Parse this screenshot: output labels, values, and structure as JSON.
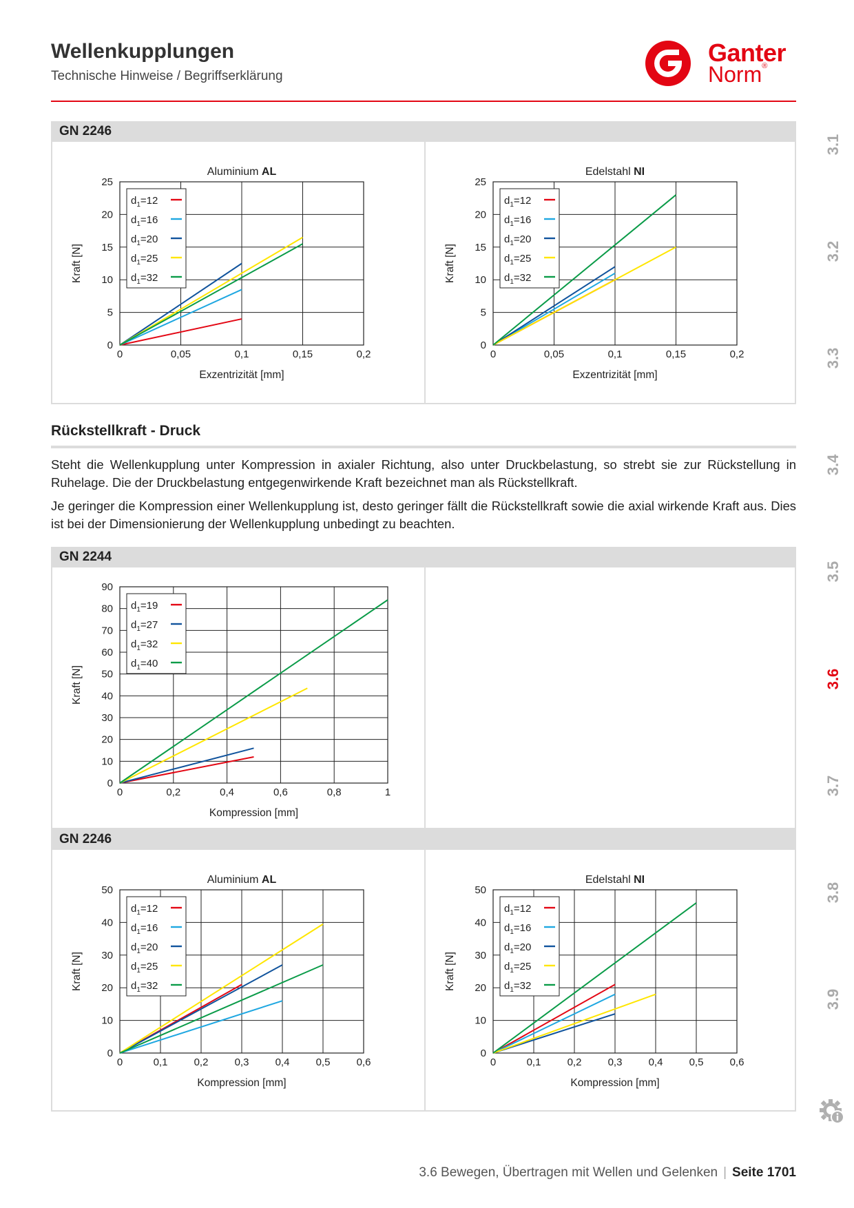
{
  "header": {
    "title": "Wellenkupplungen",
    "subtitle": "Technische Hinweise / Begriffserklärung",
    "logo": {
      "line1": "Ganter",
      "line2": "Norm",
      "mark": "®"
    }
  },
  "sections": {
    "gn2246_top": "GN 2246",
    "gn2244": "GN 2244",
    "gn2246_bottom": "GN 2246"
  },
  "text": {
    "heading": "Rückstellkraft - Druck",
    "p1": "Steht die Wellenkupplung unter Kompression in axialer Richtung, also unter Druckbelastung, so strebt sie zur Rückstellung in Ruhelage. Die der Druckbelastung entgegenwirkende Kraft bezeichnet man als Rückstellkraft.",
    "p2": "Je geringer die Kompression einer Wellenkupplung ist, desto geringer fällt die Rückstellkraft sowie die axial wirkende Kraft aus. Dies ist bei der Dimensionierung der Wellenkupplung unbedingt zu beachten."
  },
  "sidebar": {
    "items": [
      "3.1",
      "3.2",
      "3.3",
      "3.4",
      "3.5",
      "3.6",
      "3.7",
      "3.8",
      "3.9"
    ],
    "active": "3.6",
    "info_icon": "gear-info-icon"
  },
  "footer": {
    "chapter": "3.6 Bewegen, Übertragen mit Wellen und Gelenken",
    "separator": "|",
    "page": "Seite 1701"
  },
  "colors": {
    "accent": "#e30613",
    "bar": "#dcdcdc",
    "sidebar_inactive": "#aaaaaa"
  },
  "chart_data": [
    {
      "type": "line",
      "title_prefix": "Aluminium",
      "title_bold": "AL",
      "xlabel": "Exzentrizität [mm]",
      "ylabel": "Kraft [N]",
      "xlim": [
        0,
        0.2
      ],
      "ylim": [
        0,
        25
      ],
      "xticks": [
        "0",
        "0,05",
        "0,1",
        "0,15",
        "0,2"
      ],
      "yticks": [
        "0",
        "5",
        "10",
        "15",
        "20",
        "25"
      ],
      "grid": true,
      "legend_position": "top-left",
      "series": [
        {
          "name": "d1=12",
          "color": "#e30613",
          "points": [
            [
              0,
              0
            ],
            [
              0.1,
              4
            ]
          ]
        },
        {
          "name": "d1=16",
          "color": "#1ea7e1",
          "points": [
            [
              0,
              0
            ],
            [
              0.1,
              8.5
            ]
          ]
        },
        {
          "name": "d1=20",
          "color": "#10539c",
          "points": [
            [
              0,
              0
            ],
            [
              0.1,
              12.5
            ]
          ]
        },
        {
          "name": "d1=25",
          "color": "#ffe600",
          "points": [
            [
              0,
              0
            ],
            [
              0.15,
              16.5
            ]
          ]
        },
        {
          "name": "d1=32",
          "color": "#0a9b48",
          "points": [
            [
              0,
              0
            ],
            [
              0.15,
              15.5
            ]
          ]
        }
      ]
    },
    {
      "type": "line",
      "title_prefix": "Edelstahl",
      "title_bold": "NI",
      "xlabel": "Exzentrizität [mm]",
      "ylabel": "Kraft [N]",
      "xlim": [
        0,
        0.2
      ],
      "ylim": [
        0,
        25
      ],
      "xticks": [
        "0",
        "0,05",
        "0,1",
        "0,15",
        "0,2"
      ],
      "yticks": [
        "0",
        "5",
        "10",
        "15",
        "20",
        "25"
      ],
      "grid": true,
      "legend_position": "top-left",
      "series": [
        {
          "name": "d1=12",
          "color": "#e30613",
          "points": [
            [
              0,
              0
            ],
            [
              0.1,
              10
            ]
          ]
        },
        {
          "name": "d1=16",
          "color": "#1ea7e1",
          "points": [
            [
              0,
              0
            ],
            [
              0.1,
              11
            ]
          ]
        },
        {
          "name": "d1=20",
          "color": "#10539c",
          "points": [
            [
              0,
              0
            ],
            [
              0.1,
              12
            ]
          ]
        },
        {
          "name": "d1=25",
          "color": "#ffe600",
          "points": [
            [
              0,
              0
            ],
            [
              0.15,
              15
            ]
          ]
        },
        {
          "name": "d1=32",
          "color": "#0a9b48",
          "points": [
            [
              0,
              0
            ],
            [
              0.15,
              23
            ]
          ]
        }
      ]
    },
    {
      "type": "line",
      "title_prefix": "",
      "title_bold": "",
      "xlabel": "Kompression [mm]",
      "ylabel": "Kraft [N]",
      "xlim": [
        0,
        1
      ],
      "ylim": [
        0,
        90
      ],
      "xticks": [
        "0",
        "0,2",
        "0,4",
        "0,6",
        "0,8",
        "1"
      ],
      "yticks": [
        "0",
        "10",
        "20",
        "30",
        "40",
        "50",
        "60",
        "70",
        "80",
        "90"
      ],
      "grid": true,
      "legend_position": "top-left",
      "series": [
        {
          "name": "d1=19",
          "color": "#e30613",
          "points": [
            [
              0,
              0
            ],
            [
              0.5,
              12
            ]
          ]
        },
        {
          "name": "d1=27",
          "color": "#10539c",
          "points": [
            [
              0,
              0
            ],
            [
              0.5,
              16
            ]
          ]
        },
        {
          "name": "d1=32",
          "color": "#ffe600",
          "points": [
            [
              0,
              0
            ],
            [
              0.7,
              43.5
            ]
          ]
        },
        {
          "name": "d1=40",
          "color": "#0a9b48",
          "points": [
            [
              0,
              0
            ],
            [
              1,
              84
            ]
          ]
        }
      ]
    },
    {
      "type": "line",
      "title_prefix": "Aluminium",
      "title_bold": "AL",
      "xlabel": "Kompression [mm]",
      "ylabel": "Kraft [N]",
      "xlim": [
        0,
        0.6
      ],
      "ylim": [
        0,
        50
      ],
      "xticks": [
        "0",
        "0,1",
        "0,2",
        "0,3",
        "0,4",
        "0,5",
        "0,6"
      ],
      "yticks": [
        "0",
        "10",
        "20",
        "30",
        "40",
        "50"
      ],
      "grid": true,
      "legend_position": "top-left",
      "series": [
        {
          "name": "d1=12",
          "color": "#e30613",
          "points": [
            [
              0,
              0
            ],
            [
              0.3,
              21
            ]
          ]
        },
        {
          "name": "d1=16",
          "color": "#1ea7e1",
          "points": [
            [
              0,
              0
            ],
            [
              0.4,
              16
            ]
          ]
        },
        {
          "name": "d1=20",
          "color": "#10539c",
          "points": [
            [
              0,
              0
            ],
            [
              0.4,
              27
            ]
          ]
        },
        {
          "name": "d1=25",
          "color": "#ffe600",
          "points": [
            [
              0,
              0
            ],
            [
              0.5,
              39.5
            ]
          ]
        },
        {
          "name": "d1=32",
          "color": "#0a9b48",
          "points": [
            [
              0,
              0
            ],
            [
              0.5,
              27
            ]
          ]
        }
      ]
    },
    {
      "type": "line",
      "title_prefix": "Edelstahl",
      "title_bold": "NI",
      "xlabel": "Kompression [mm]",
      "ylabel": "Kraft [N]",
      "xlim": [
        0,
        0.6
      ],
      "ylim": [
        0,
        50
      ],
      "xticks": [
        "0",
        "0,1",
        "0,2",
        "0,3",
        "0,4",
        "0,5",
        "0,6"
      ],
      "yticks": [
        "0",
        "10",
        "20",
        "30",
        "40",
        "50"
      ],
      "grid": true,
      "legend_position": "top-left",
      "series": [
        {
          "name": "d1=12",
          "color": "#e30613",
          "points": [
            [
              0,
              0
            ],
            [
              0.3,
              21
            ]
          ]
        },
        {
          "name": "d1=16",
          "color": "#1ea7e1",
          "points": [
            [
              0,
              0
            ],
            [
              0.3,
              18
            ]
          ]
        },
        {
          "name": "d1=20",
          "color": "#10539c",
          "points": [
            [
              0,
              0
            ],
            [
              0.3,
              12
            ]
          ]
        },
        {
          "name": "d1=25",
          "color": "#ffe600",
          "points": [
            [
              0,
              0
            ],
            [
              0.4,
              18
            ]
          ]
        },
        {
          "name": "d1=32",
          "color": "#0a9b48",
          "points": [
            [
              0,
              0
            ],
            [
              0.5,
              46
            ]
          ]
        }
      ]
    }
  ]
}
